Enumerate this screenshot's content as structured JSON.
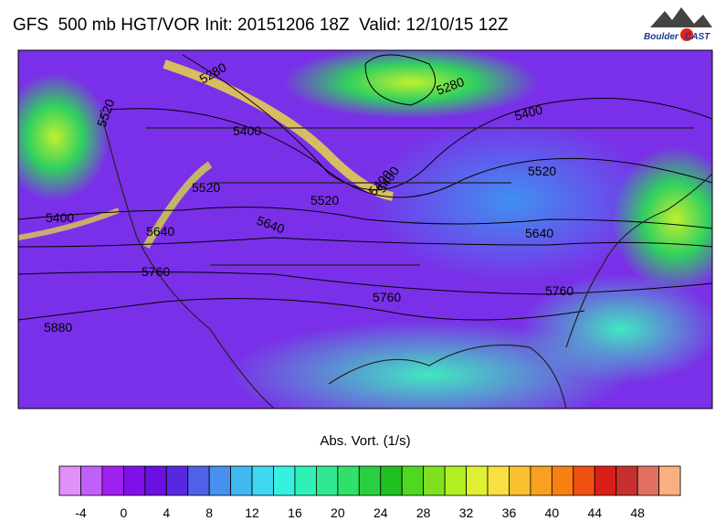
{
  "header": {
    "title": "GFS  500 mb HGT/VOR Init: 20151206 18Z  Valid: 12/10/15 12Z"
  },
  "logo": {
    "line1": "Boulder",
    "line2": "CAST"
  },
  "map": {
    "contour_labels": [
      "5280",
      "5280",
      "5400",
      "5400",
      "5400",
      "5400",
      "5520",
      "5520",
      "5520",
      "5520",
      "5640",
      "5640",
      "5640",
      "5760",
      "5760",
      "5760",
      "5880",
      "5400"
    ]
  },
  "colorbar": {
    "title": "Abs. Vort. (1/s)",
    "ticks": [
      -4,
      0,
      4,
      8,
      12,
      16,
      20,
      24,
      28,
      32,
      36,
      40,
      44,
      48
    ],
    "colors": [
      "#e090f8",
      "#c060f8",
      "#a020f0",
      "#8010e8",
      "#6a10e0",
      "#5828e0",
      "#5060e8",
      "#4890f0",
      "#40b8f0",
      "#40d8f0",
      "#38f0e0",
      "#30f0b8",
      "#30e890",
      "#30e068",
      "#28d040",
      "#20c020",
      "#50d820",
      "#80e020",
      "#b0f020",
      "#e0f030",
      "#f8e040",
      "#f8c030",
      "#f8a020",
      "#f88010",
      "#f05010",
      "#d82018",
      "#c83030",
      "#e07060",
      "#f8b080"
    ]
  }
}
